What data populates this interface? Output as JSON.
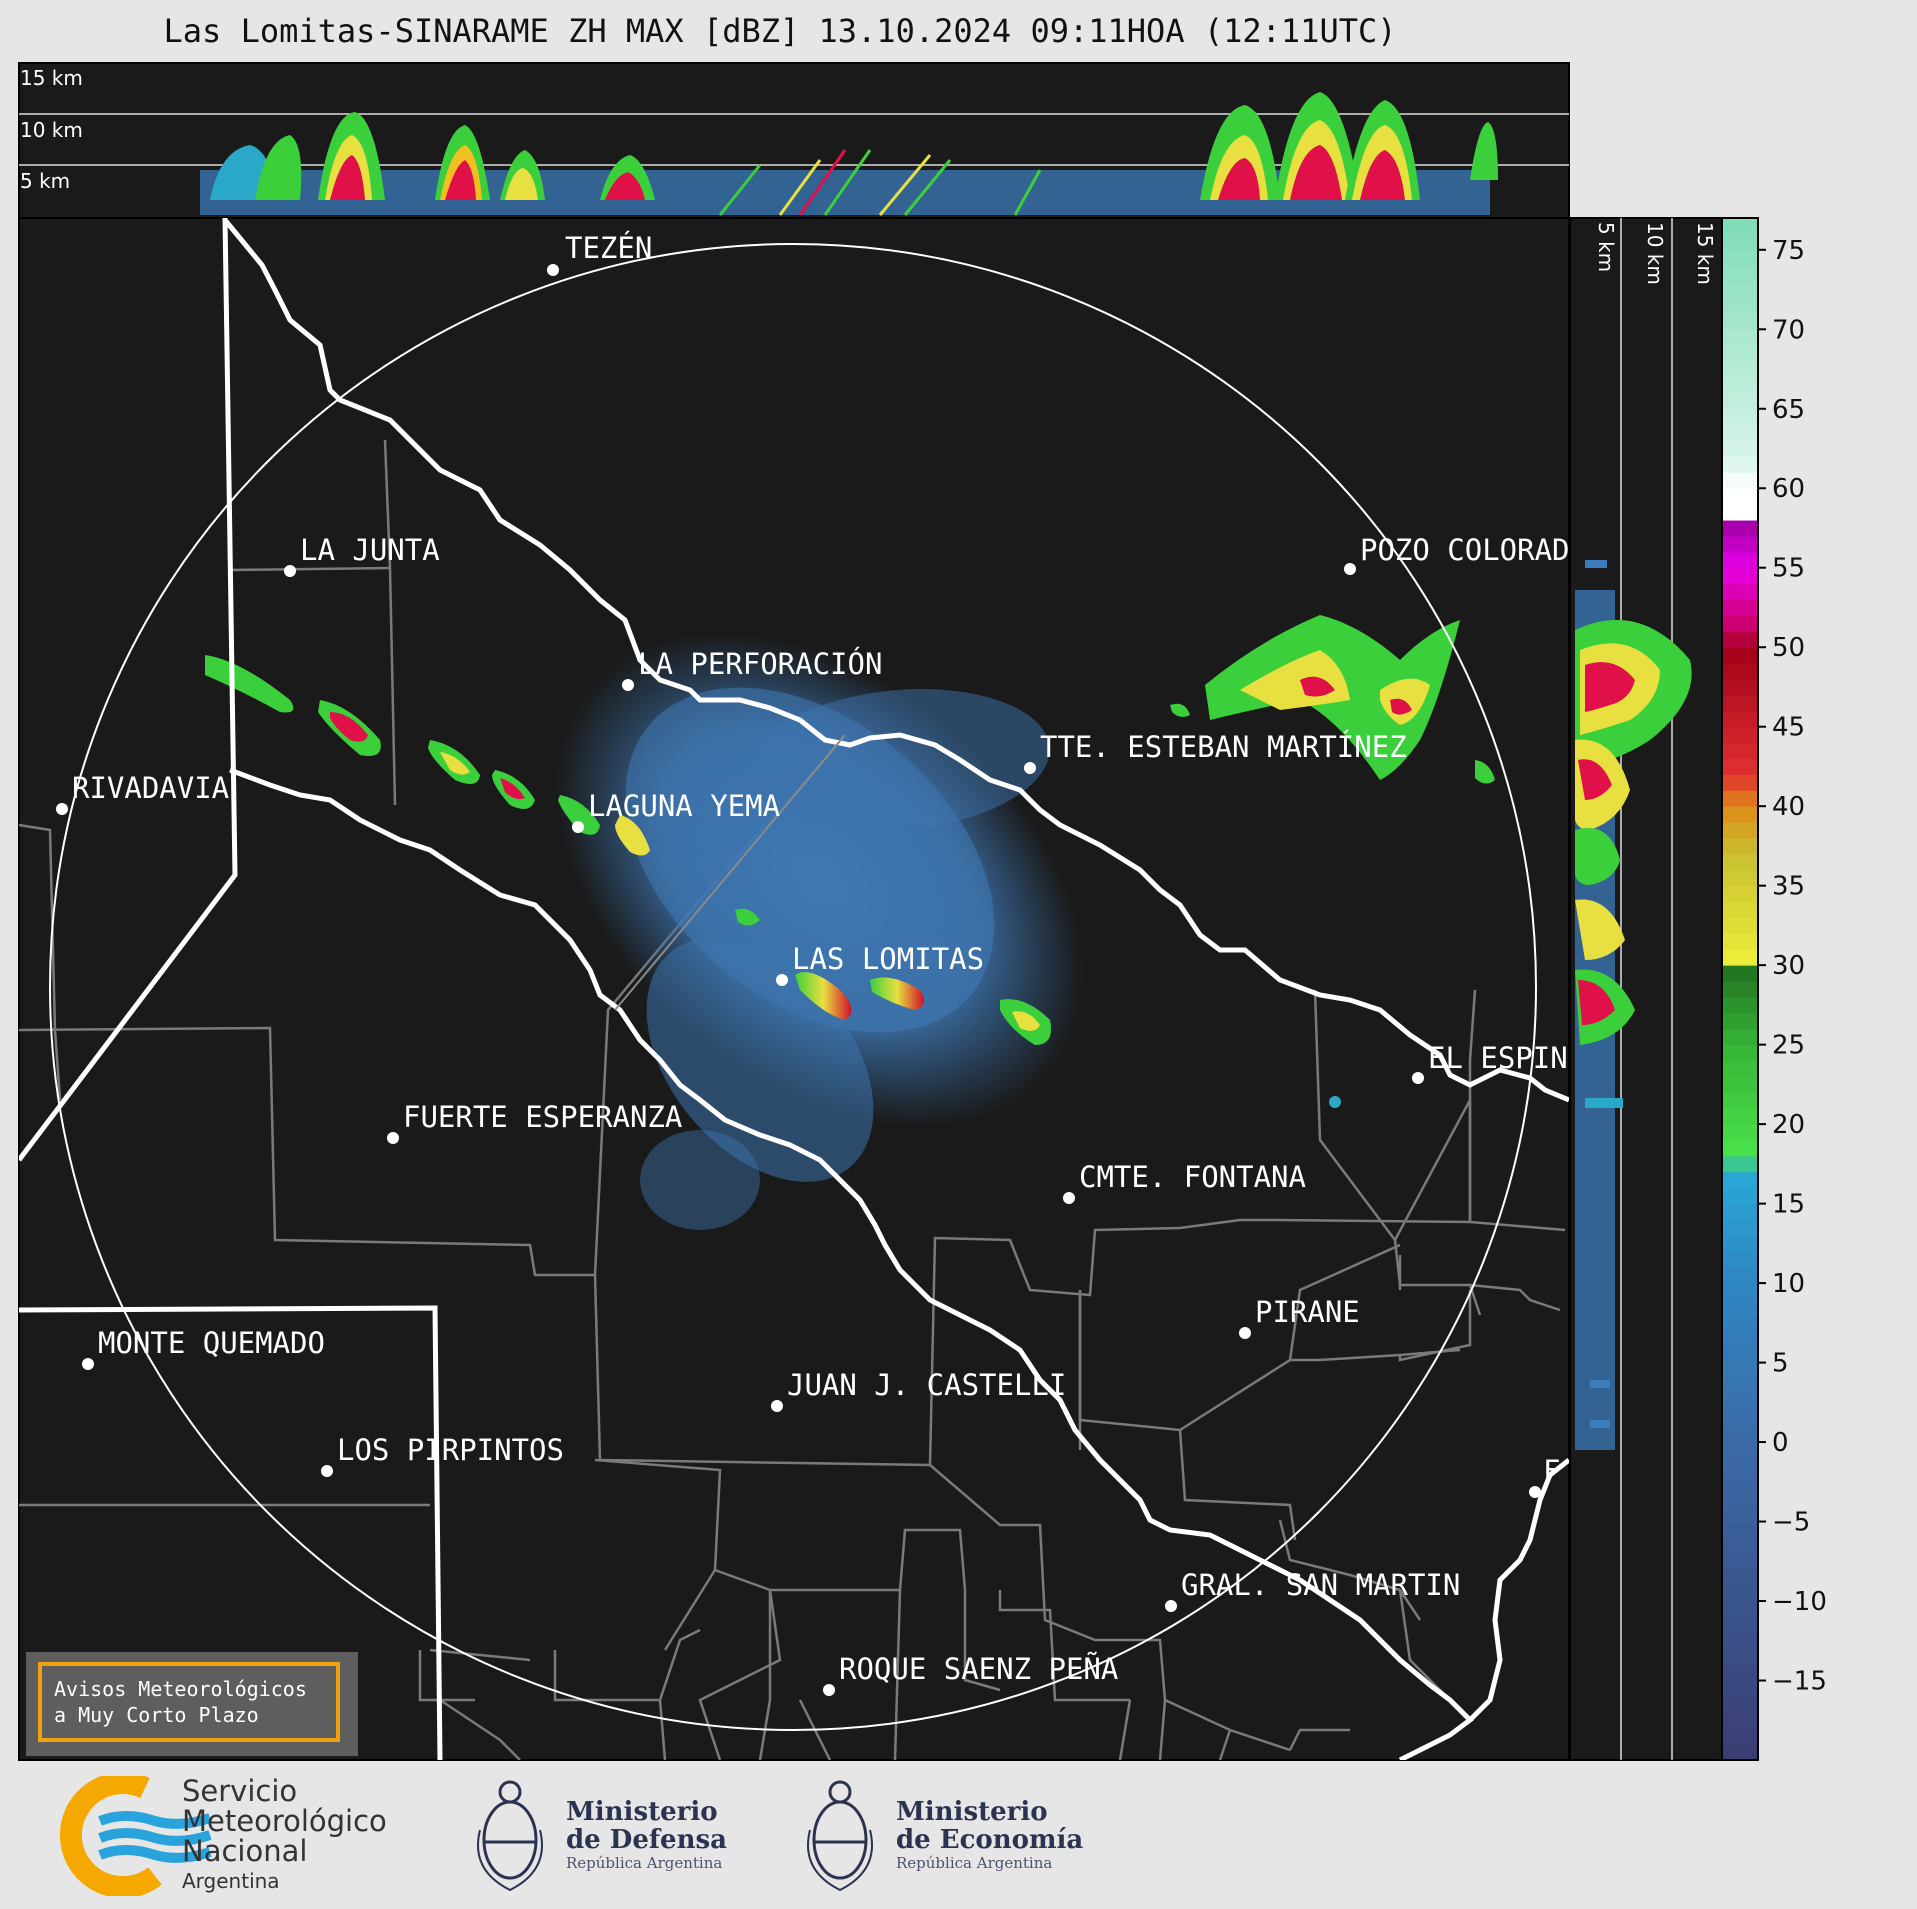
{
  "title": "Las Lomitas-SINARAME ZH MAX [dBZ] 13.10.2024 09:11HOA (12:11UTC)",
  "top_panel": {
    "height_labels": [
      "15 km",
      "10 km",
      "5 km"
    ]
  },
  "side_panel": {
    "height_labels": [
      "5 km",
      "10 km",
      "15 km"
    ]
  },
  "colorbar": {
    "ticks": [
      "75",
      "70",
      "65",
      "60",
      "55",
      "50",
      "45",
      "40",
      "35",
      "30",
      "25",
      "20",
      "15",
      "10",
      "5",
      "0",
      "−5",
      "−10",
      "−15"
    ],
    "range_dbz": [
      -20,
      77
    ]
  },
  "map": {
    "radar_site": "LAS LOMITAS",
    "places": [
      {
        "name": "TEZÉN"
      },
      {
        "name": "LA JUNTA"
      },
      {
        "name": "POZO COLORAD"
      },
      {
        "name": "LA PERFORACIÓN"
      },
      {
        "name": "TTE. ESTEBAN MARTÍNEZ"
      },
      {
        "name": "RIVADAVIA"
      },
      {
        "name": "LAGUNA YEMA"
      },
      {
        "name": "LAS LOMITAS"
      },
      {
        "name": "EL ESPIN"
      },
      {
        "name": "FUERTE ESPERANZA"
      },
      {
        "name": "CMTE. FONTANA"
      },
      {
        "name": "PIRANE"
      },
      {
        "name": "MONTE QUEMADO"
      },
      {
        "name": "JUAN J. CASTELLI"
      },
      {
        "name": "LOS PIRPINTOS"
      },
      {
        "name": "GRAL. SAN MARTIN"
      },
      {
        "name": "ROQUE SAENZ PEÑA"
      },
      {
        "name": "F"
      }
    ]
  },
  "badge": {
    "line1": "Avisos Meteorológicos",
    "line2": "a Muy Corto Plazo"
  },
  "footer": {
    "smn": {
      "line1": "Servicio",
      "line2": "Meteorológico",
      "line3": "Nacional",
      "country": "Argentina"
    },
    "defensa": {
      "line1": "Ministerio",
      "line2": "de Defensa",
      "sub": "República Argentina"
    },
    "economia": {
      "line1": "Ministerio",
      "line2": "de Economía",
      "sub": "República Argentina"
    }
  }
}
